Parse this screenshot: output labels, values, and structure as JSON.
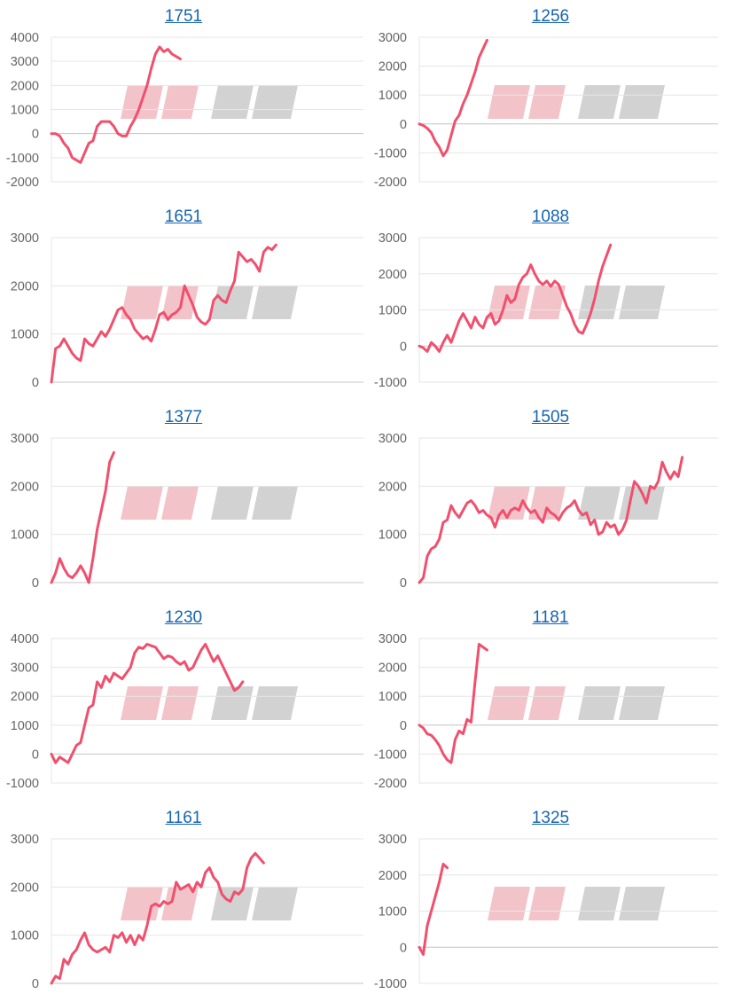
{
  "watermark": "みんレポ",
  "colors": {
    "line": "#f0506e",
    "title": "#1565b0",
    "grid": "#e6e6e6",
    "zero": "#c4c4c4",
    "tick": "#666666"
  },
  "chart_data": [
    {
      "type": "line",
      "title": "1751",
      "ylim": [
        -2000,
        4000
      ],
      "x_capacity": 75,
      "values": [
        0,
        0,
        -100,
        -400,
        -600,
        -1000,
        -1100,
        -1200,
        -800,
        -400,
        -300,
        300,
        500,
        500,
        500,
        300,
        0,
        -100,
        -100,
        300,
        600,
        1000,
        1500,
        2000,
        2700,
        3300,
        3600,
        3400,
        3500,
        3300,
        3200,
        3100
      ]
    },
    {
      "type": "line",
      "title": "1256",
      "ylim": [
        -2000,
        3000
      ],
      "x_capacity": 75,
      "values": [
        0,
        -50,
        -150,
        -300,
        -600,
        -800,
        -1100,
        -900,
        -400,
        100,
        300,
        700,
        1000,
        1400,
        1800,
        2300,
        2600,
        2900
      ]
    },
    {
      "type": "line",
      "title": "1651",
      "ylim": [
        0,
        3000
      ],
      "x_capacity": 75,
      "values": [
        0,
        700,
        750,
        900,
        750,
        600,
        500,
        450,
        900,
        800,
        750,
        900,
        1050,
        950,
        1100,
        1300,
        1500,
        1550,
        1400,
        1300,
        1100,
        1000,
        900,
        950,
        850,
        1100,
        1400,
        1450,
        1300,
        1400,
        1450,
        1550,
        2000,
        1800,
        1600,
        1350,
        1250,
        1200,
        1300,
        1700,
        1800,
        1700,
        1650,
        1900,
        2100,
        2700,
        2600,
        2500,
        2550,
        2450,
        2300,
        2700,
        2800,
        2750,
        2850
      ]
    },
    {
      "type": "line",
      "title": "1088",
      "ylim": [
        -1000,
        3000
      ],
      "x_capacity": 75,
      "values": [
        0,
        -50,
        -150,
        100,
        0,
        -150,
        100,
        300,
        100,
        400,
        700,
        900,
        700,
        500,
        800,
        600,
        500,
        800,
        900,
        600,
        700,
        1000,
        1400,
        1200,
        1300,
        1700,
        1900,
        2000,
        2250,
        2000,
        1800,
        1700,
        1800,
        1650,
        1800,
        1700,
        1400,
        1100,
        900,
        600,
        400,
        350,
        600,
        900,
        1300,
        1800,
        2200,
        2500,
        2800
      ]
    },
    {
      "type": "line",
      "title": "1377",
      "ylim": [
        0,
        3000
      ],
      "x_capacity": 75,
      "values": [
        0,
        200,
        500,
        300,
        150,
        100,
        200,
        350,
        200,
        0,
        500,
        1100,
        1500,
        1900,
        2500,
        2700
      ]
    },
    {
      "type": "line",
      "title": "1505",
      "ylim": [
        0,
        3000
      ],
      "x_capacity": 75,
      "values": [
        0,
        100,
        550,
        700,
        750,
        900,
        1250,
        1300,
        1600,
        1450,
        1350,
        1500,
        1650,
        1700,
        1600,
        1450,
        1500,
        1400,
        1350,
        1150,
        1400,
        1500,
        1350,
        1500,
        1550,
        1500,
        1700,
        1550,
        1450,
        1500,
        1350,
        1250,
        1550,
        1450,
        1400,
        1300,
        1450,
        1550,
        1600,
        1700,
        1500,
        1400,
        1450,
        1200,
        1300,
        1000,
        1050,
        1250,
        1150,
        1200,
        1000,
        1100,
        1300,
        1700,
        2100,
        2000,
        1850,
        1650,
        2000,
        1950,
        2100,
        2500,
        2300,
        2150,
        2300,
        2200,
        2600
      ]
    },
    {
      "type": "line",
      "title": "1230",
      "ylim": [
        -1000,
        4000
      ],
      "x_capacity": 75,
      "values": [
        0,
        -300,
        -100,
        -200,
        -300,
        0,
        300,
        400,
        1000,
        1600,
        1700,
        2500,
        2300,
        2700,
        2500,
        2800,
        2700,
        2600,
        2800,
        3000,
        3500,
        3700,
        3650,
        3800,
        3750,
        3700,
        3500,
        3300,
        3400,
        3350,
        3200,
        3100,
        3200,
        2900,
        3000,
        3300,
        3600,
        3800,
        3500,
        3200,
        3400,
        3100,
        2800,
        2500,
        2200,
        2300,
        2500
      ]
    },
    {
      "type": "line",
      "title": "1181",
      "ylim": [
        -2000,
        3000
      ],
      "x_capacity": 75,
      "values": [
        0,
        -100,
        -300,
        -350,
        -500,
        -700,
        -1000,
        -1200,
        -1300,
        -500,
        -200,
        -300,
        200,
        100,
        1500,
        2800,
        2700,
        2600
      ]
    },
    {
      "type": "line",
      "title": "1161",
      "ylim": [
        0,
        3000
      ],
      "x_capacity": 75,
      "values": [
        0,
        150,
        100,
        500,
        400,
        600,
        700,
        900,
        1050,
        800,
        700,
        650,
        700,
        750,
        650,
        1000,
        950,
        1050,
        850,
        1000,
        800,
        1000,
        900,
        1200,
        1600,
        1650,
        1600,
        1700,
        1650,
        1700,
        2100,
        1950,
        2000,
        2050,
        1900,
        2100,
        2000,
        2300,
        2400,
        2200,
        2100,
        1850,
        1750,
        1700,
        1900,
        1850,
        1950,
        2400,
        2600,
        2700,
        2600,
        2500
      ]
    },
    {
      "type": "line",
      "title": "1325",
      "ylim": [
        -1000,
        3000
      ],
      "x_capacity": 75,
      "values": [
        0,
        -200,
        600,
        1000,
        1400,
        1800,
        2300,
        2200
      ]
    }
  ]
}
